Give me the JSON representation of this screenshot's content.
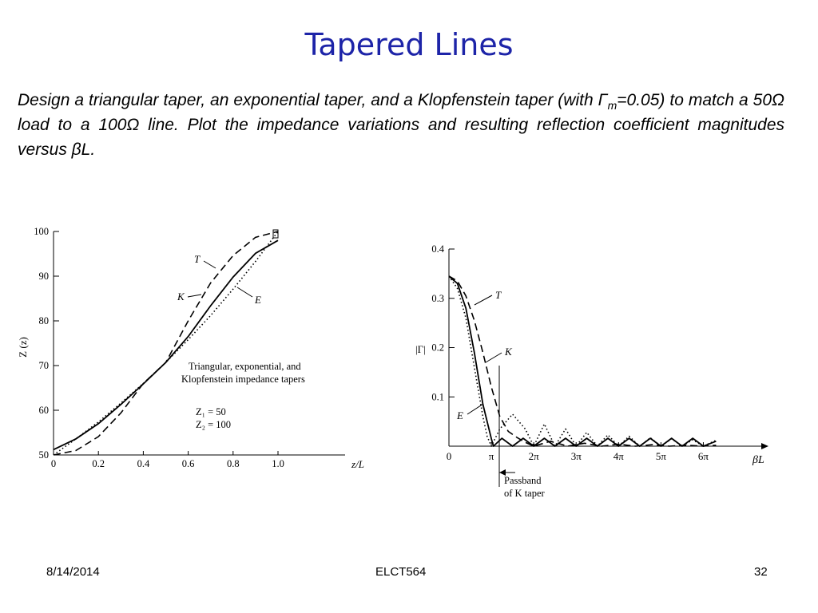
{
  "slide": {
    "title": "Tapered Lines",
    "body": {
      "part1": "Design a triangular taper, an exponential taper, and a Klopfenstein taper (with Γ",
      "sub": "m",
      "part2": "=0.05) to match a 50Ω load to a 100Ω line. Plot the impedance variations and resulting reflection coefficient magnitudes versus βL."
    },
    "footer": {
      "date": "8/14/2014",
      "course": "ELCT564",
      "page": "32"
    }
  },
  "chart_data": [
    {
      "type": "line",
      "title": "",
      "xlabel": "z/L",
      "ylabel": "Z (z)",
      "xlim": [
        0,
        1.0
      ],
      "ylim": [
        50,
        100
      ],
      "x_ticks": [
        "0",
        "0.2",
        "0.4",
        "0.6",
        "0.8",
        "1.0"
      ],
      "y_ticks": [
        "50",
        "60",
        "70",
        "80",
        "90",
        "100"
      ],
      "annotation": "Triangular, exponential, and Klopfenstein impedance tapers",
      "annotation_line1": "Triangular, exponential, and",
      "annotation_line2": "Klopfenstein impedance tapers",
      "param_z1": "Z₁ = 50",
      "param_z2": "Z₂ = 100",
      "series": [
        {
          "name": "T",
          "style": "dashed",
          "x": [
            0,
            0.1,
            0.2,
            0.3,
            0.4,
            0.5,
            0.6,
            0.7,
            0.8,
            0.9,
            1.0
          ],
          "y": [
            50,
            51.0,
            54.1,
            59.4,
            66.0,
            70.7,
            80.0,
            88.5,
            94.6,
            98.7,
            100
          ]
        },
        {
          "name": "E",
          "style": "dotted",
          "x": [
            0,
            0.1,
            0.2,
            0.3,
            0.4,
            0.5,
            0.6,
            0.7,
            0.8,
            0.9,
            1.0
          ],
          "y": [
            50,
            53.6,
            57.4,
            61.6,
            66.0,
            70.7,
            75.8,
            81.2,
            87.1,
            93.3,
            100
          ]
        },
        {
          "name": "K",
          "style": "solid",
          "x": [
            0,
            0.1,
            0.2,
            0.3,
            0.4,
            0.5,
            0.6,
            0.7,
            0.8,
            0.9,
            1.0
          ],
          "y": [
            51.2,
            53.6,
            57.0,
            61.3,
            65.9,
            70.7,
            76.5,
            83.4,
            89.8,
            95.1,
            98.0
          ]
        }
      ],
      "labels": [
        "T",
        "K",
        "E"
      ]
    },
    {
      "type": "line",
      "title": "",
      "xlabel": "βL",
      "ylabel": "|Γ|",
      "xlim": [
        0,
        6.5
      ],
      "ylim": [
        0,
        0.4
      ],
      "x_ticks": [
        "0",
        "π",
        "2π",
        "3π",
        "4π",
        "5π",
        "6π"
      ],
      "y_ticks": [
        "0.1",
        "0.2",
        "0.3",
        "0.4"
      ],
      "annotation_line1": "Passband",
      "annotation_line2": "of K taper",
      "series": [
        {
          "name": "T",
          "style": "dashed",
          "x": [
            0,
            0.2,
            0.4,
            0.6,
            0.8,
            1.0,
            1.2,
            1.4,
            1.6,
            1.8,
            2.0,
            2.4,
            2.8,
            3.2,
            3.6,
            4.0,
            4.4,
            4.8,
            5.2,
            5.6,
            6.0,
            6.3
          ],
          "y": [
            0.345,
            0.335,
            0.305,
            0.255,
            0.19,
            0.12,
            0.06,
            0.03,
            0.018,
            0.008,
            0.0,
            0.01,
            0.0,
            0.006,
            0.0,
            0.004,
            0.0,
            0.003,
            0.0,
            0.002,
            0.0,
            0.002
          ]
        },
        {
          "name": "E",
          "style": "dotted",
          "x": [
            0,
            0.2,
            0.4,
            0.6,
            0.8,
            0.9,
            1.0,
            1.2,
            1.5,
            1.8,
            2.0,
            2.25,
            2.5,
            2.75,
            3.0,
            3.25,
            3.5,
            3.75,
            4.0,
            4.25,
            4.5,
            4.75,
            5.0,
            5.25,
            5.5,
            5.75,
            6.0,
            6.3
          ],
          "y": [
            0.345,
            0.32,
            0.26,
            0.16,
            0.06,
            0.02,
            0.0,
            0.035,
            0.065,
            0.035,
            0.0,
            0.045,
            0.0,
            0.035,
            0.0,
            0.028,
            0.0,
            0.023,
            0.0,
            0.02,
            0.0,
            0.017,
            0.0,
            0.015,
            0.0,
            0.013,
            0.0,
            0.012
          ]
        },
        {
          "name": "K",
          "style": "solid",
          "x": [
            0,
            0.2,
            0.4,
            0.6,
            0.8,
            1.0,
            1.05,
            1.25,
            1.5,
            1.75,
            2.0,
            2.25,
            2.5,
            2.75,
            3.0,
            3.25,
            3.5,
            3.75,
            4.0,
            4.25,
            4.5,
            4.75,
            5.0,
            5.25,
            5.5,
            5.75,
            6.0,
            6.3
          ],
          "y": [
            0.345,
            0.33,
            0.28,
            0.19,
            0.085,
            0.015,
            0.0,
            0.016,
            0.0,
            0.016,
            0.0,
            0.016,
            0.0,
            0.016,
            0.0,
            0.016,
            0.0,
            0.016,
            0.0,
            0.016,
            0.0,
            0.016,
            0.0,
            0.016,
            0.0,
            0.016,
            0.0,
            0.01
          ]
        }
      ],
      "labels": [
        "T",
        "K",
        "E"
      ]
    }
  ]
}
